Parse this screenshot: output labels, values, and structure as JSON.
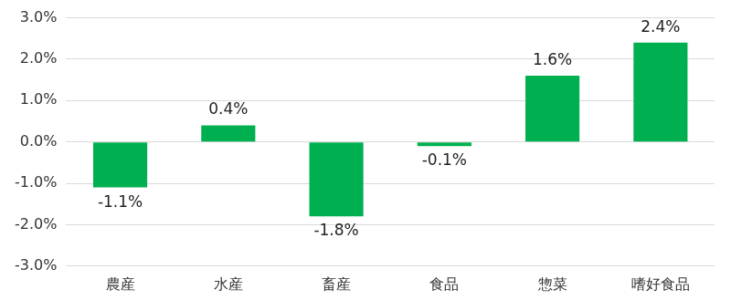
{
  "chart_data": {
    "type": "bar",
    "categories": [
      "農産",
      "水産",
      "畜産",
      "食品",
      "惣菜",
      "嗜好食品"
    ],
    "values": [
      -1.1,
      0.4,
      -1.8,
      -0.1,
      1.6,
      2.4
    ],
    "value_labels": [
      "-1.1%",
      "0.4%",
      "-1.8%",
      "-0.1%",
      "1.6%",
      "2.4%"
    ],
    "color": "#00b050",
    "ylim": [
      -3,
      3
    ],
    "yticks": [
      {
        "value": -3,
        "label": "-3.0%"
      },
      {
        "value": -2,
        "label": "-2.0%"
      },
      {
        "value": -1,
        "label": "-1.0%"
      },
      {
        "value": 0,
        "label": "0.0%"
      },
      {
        "value": 1,
        "label": "1.0%"
      },
      {
        "value": 2,
        "label": "2.0%"
      },
      {
        "value": 3,
        "label": "3.0%"
      }
    ],
    "grid": true,
    "data_labels": true
  }
}
